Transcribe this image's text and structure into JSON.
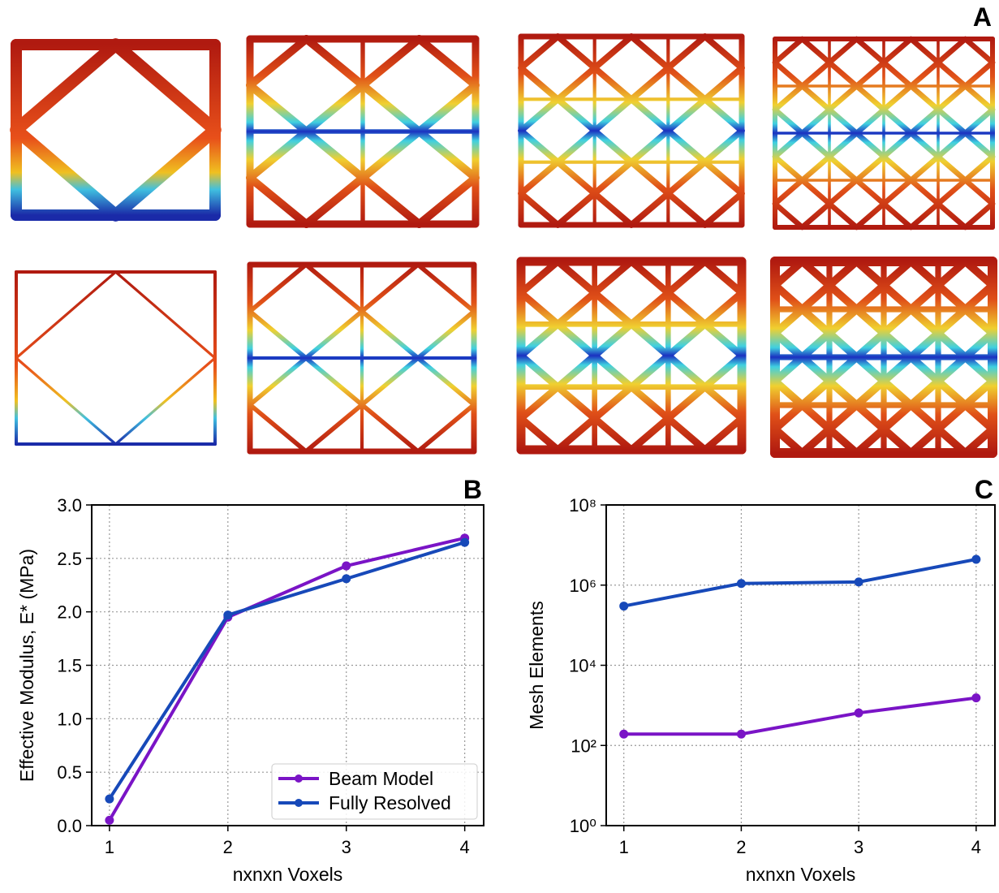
{
  "panel_a": {
    "label": "A"
  },
  "chart_data": [
    {
      "type": "line",
      "label": "B",
      "x": [
        1,
        2,
        3,
        4
      ],
      "xlabel": "nxnxn Voxels",
      "ylabel": "Effective Modulus, E* (MPa)",
      "xlim": [
        0.85,
        4.16
      ],
      "xticks": [
        1,
        2,
        3,
        4
      ],
      "ylim": [
        0,
        3
      ],
      "yticks": [
        {
          "value": 0,
          "label": "0.0"
        },
        0.5,
        {
          "value": 1,
          "label": "1.0"
        },
        1.5,
        {
          "value": 2,
          "label": "2.0"
        },
        2.5,
        {
          "value": 3,
          "label": "3.0"
        }
      ],
      "grid": true,
      "legend": "lower right",
      "series": [
        {
          "name": "Beam Model",
          "color": "#7a14c6",
          "values": [
            0.05,
            1.95,
            2.43,
            2.69
          ]
        },
        {
          "name": "Fully Resolved",
          "color": "#1749b9",
          "values": [
            0.25,
            1.97,
            2.31,
            2.65
          ]
        }
      ]
    },
    {
      "type": "line",
      "label": "C",
      "x": [
        1,
        2,
        3,
        4
      ],
      "xlabel": "nxnxn Voxels",
      "ylabel": "Mesh Elements",
      "xlim": [
        0.85,
        4.16
      ],
      "xticks": [
        1,
        2,
        3,
        4
      ],
      "ylim": [
        1,
        100000000
      ],
      "log_y": true,
      "yticks": [
        {
          "value": 1,
          "label": "10⁰"
        },
        {
          "value": 100,
          "label": "10²"
        },
        {
          "value": 10000,
          "label": "10⁴"
        },
        {
          "value": 1000000,
          "label": "10⁶"
        },
        {
          "value": 100000000,
          "label": "10⁸"
        }
      ],
      "grid": true,
      "series": [
        {
          "color": "#7a14c6",
          "values": [
            192,
            192,
            648,
            1536
          ]
        },
        {
          "color": "#1749b9",
          "values": [
            300000,
            1100000,
            1200000,
            4400000
          ]
        }
      ]
    }
  ]
}
